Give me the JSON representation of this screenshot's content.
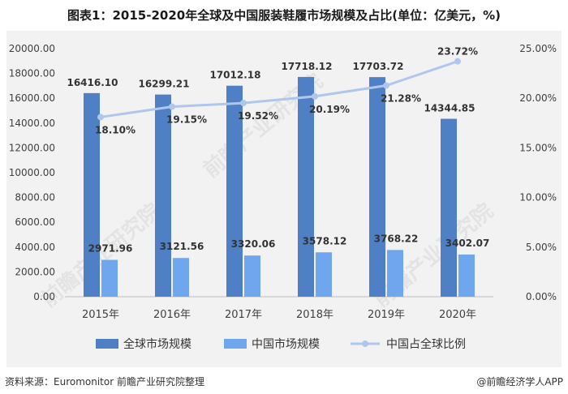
{
  "title": "图表1：2015-2020年全球及中国服装鞋履市场规模及占比(单位：亿美元，%)",
  "source": "资料来源：Euromonitor 前瞻产业研究院整理",
  "brand": "@前瞻经济学人APP",
  "watermark": "前瞻产业研究院",
  "colors": {
    "global_bar": "#4f7fc4",
    "china_bar": "#6fa6ee",
    "ratio_line": "#afc7ec",
    "plot_bg": "#f2f2f2"
  },
  "chart_data": {
    "type": "bar",
    "categories": [
      "2015年",
      "2016年",
      "2017年",
      "2018年",
      "2019年",
      "2020年"
    ],
    "series": [
      {
        "name": "全球市场规模",
        "type": "bar",
        "axis": "left",
        "values": [
          16416.1,
          16299.21,
          17012.18,
          17718.12,
          17703.72,
          14344.85
        ],
        "labels": [
          "16416.10",
          "16299.21",
          "17012.18",
          "17718.12",
          "17703.72",
          "14344.85"
        ]
      },
      {
        "name": "中国市场规模",
        "type": "bar",
        "axis": "left",
        "values": [
          2971.96,
          3121.56,
          3320.06,
          3578.12,
          3768.22,
          3402.07
        ],
        "labels": [
          "2971.96",
          "3121.56",
          "3320.06",
          "3578.12",
          "3768.22",
          "3402.07"
        ]
      },
      {
        "name": "中国占全球比例",
        "type": "line",
        "axis": "right",
        "values": [
          18.1,
          19.15,
          19.52,
          20.19,
          21.28,
          23.72
        ],
        "labels": [
          "18.10%",
          "19.15%",
          "19.52%",
          "20.19%",
          "21.28%",
          "23.72%"
        ]
      }
    ],
    "y_left": {
      "min": 0,
      "max": 20000,
      "ticks": [
        0,
        2000,
        4000,
        6000,
        8000,
        10000,
        12000,
        14000,
        16000,
        18000,
        20000
      ],
      "tick_labels": [
        "0.00",
        "2000.00",
        "4000.00",
        "6000.00",
        "8000.00",
        "10000.00",
        "12000.00",
        "14000.00",
        "16000.00",
        "18000.00",
        "20000.00"
      ]
    },
    "y_right": {
      "min": 0,
      "max": 25,
      "ticks": [
        0,
        5,
        10,
        15,
        20,
        25
      ],
      "tick_labels": [
        "0.00%",
        "5.00%",
        "10.00%",
        "15.00%",
        "20.00%",
        "25.00%"
      ]
    },
    "grid": false,
    "legend": "bottom"
  }
}
